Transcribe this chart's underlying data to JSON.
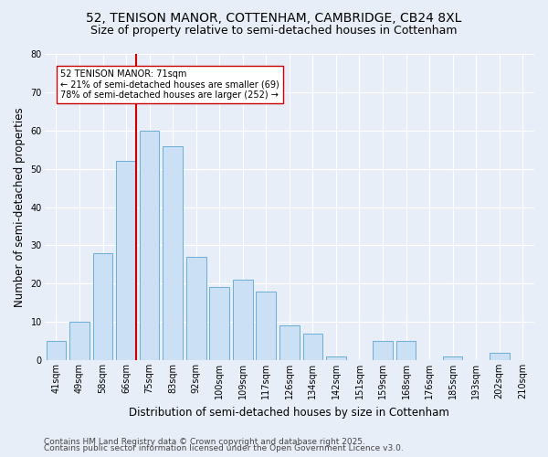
{
  "title": "52, TENISON MANOR, COTTENHAM, CAMBRIDGE, CB24 8XL",
  "subtitle": "Size of property relative to semi-detached houses in Cottenham",
  "xlabel": "Distribution of semi-detached houses by size in Cottenham",
  "ylabel": "Number of semi-detached properties",
  "categories": [
    "41sqm",
    "49sqm",
    "58sqm",
    "66sqm",
    "75sqm",
    "83sqm",
    "92sqm",
    "100sqm",
    "109sqm",
    "117sqm",
    "126sqm",
    "134sqm",
    "142sqm",
    "151sqm",
    "159sqm",
    "168sqm",
    "176sqm",
    "185sqm",
    "193sqm",
    "202sqm",
    "210sqm"
  ],
  "values": [
    5,
    10,
    28,
    52,
    60,
    56,
    27,
    19,
    21,
    18,
    9,
    7,
    1,
    0,
    5,
    5,
    0,
    1,
    0,
    2,
    0
  ],
  "bar_color": "#cce0f5",
  "bar_edge_color": "#6aaed6",
  "red_line_color": "#cc0000",
  "annotation_text": "52 TENISON MANOR: 71sqm\n← 21% of semi-detached houses are smaller (69)\n78% of semi-detached houses are larger (252) →",
  "annotation_box_color": "#ffffff",
  "annotation_box_edge": "#cc0000",
  "property_bin_index": 3,
  "ylim": [
    0,
    80
  ],
  "yticks": [
    0,
    10,
    20,
    30,
    40,
    50,
    60,
    70,
    80
  ],
  "footer1": "Contains HM Land Registry data © Crown copyright and database right 2025.",
  "footer2": "Contains public sector information licensed under the Open Government Licence v3.0.",
  "bg_color": "#e8eef8",
  "plot_bg_color": "#e8eef8",
  "title_fontsize": 10,
  "subtitle_fontsize": 9,
  "axis_label_fontsize": 8.5,
  "tick_fontsize": 7,
  "footer_fontsize": 6.5,
  "annot_fontsize": 7
}
